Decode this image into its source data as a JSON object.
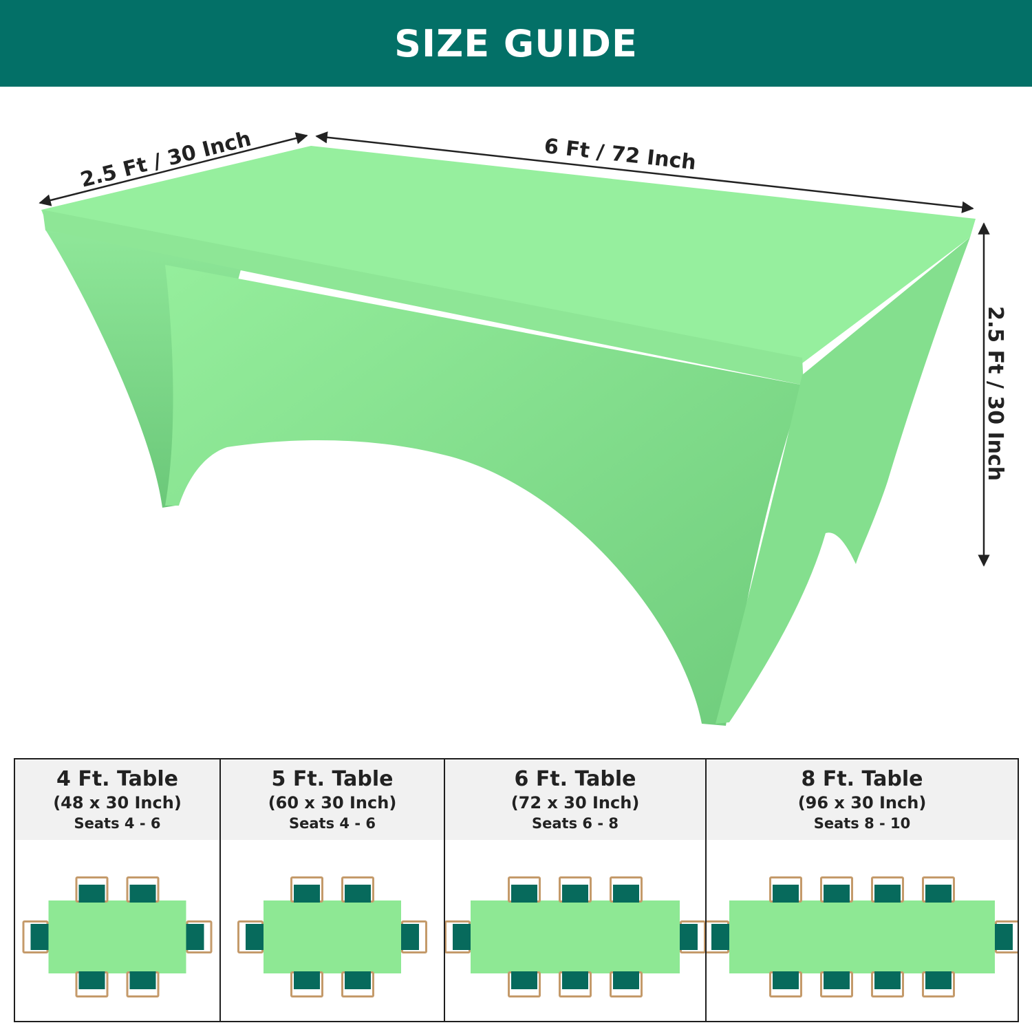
{
  "banner": {
    "title": "SIZE GUIDE"
  },
  "colors": {
    "banner": "#037067",
    "cloth": "#8ee894",
    "chair_seat": "#076a5c",
    "chair_frame": "#c49a6a"
  },
  "dimensions": {
    "width_label": "2.5 Ft / 30 Inch",
    "length_label": "6 Ft / 72 Inch",
    "height_label": "2.5 Ft / 30 Inch"
  },
  "tables": [
    {
      "title": "4 Ft. Table",
      "size": "(48 x 30 Inch)",
      "seats": "Seats 4 - 6",
      "chairs_per_side": 2
    },
    {
      "title": "5 Ft. Table",
      "size": "(60 x 30 Inch)",
      "seats": "Seats 4 - 6",
      "chairs_per_side": 2
    },
    {
      "title": "6 Ft. Table",
      "size": "(72 x 30 Inch)",
      "seats": "Seats 6 - 8",
      "chairs_per_side": 3
    },
    {
      "title": "8 Ft. Table",
      "size": "(96 x 30 Inch)",
      "seats": "Seats 8 - 10",
      "chairs_per_side": 4
    }
  ]
}
